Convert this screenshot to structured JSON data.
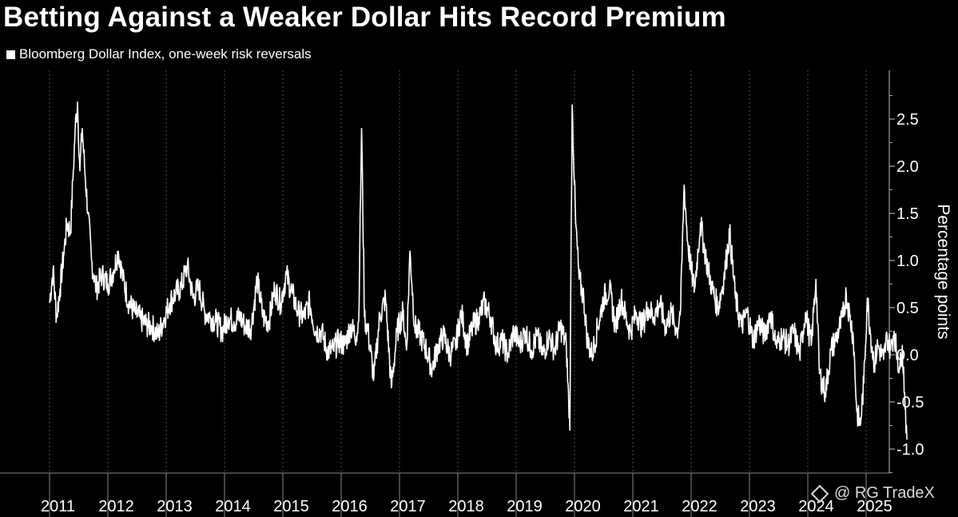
{
  "chart_data": {
    "type": "line",
    "title": "Betting Against a Weaker Dollar Hits Record Premium",
    "legend": [
      "Bloomberg Dollar Index, one-week risk reversals"
    ],
    "ylabel": "Percentage points",
    "xlabel": "",
    "ylim": [
      -1.25,
      3.0
    ],
    "yticks": [
      -1.0,
      -0.5,
      0.0,
      0.5,
      1.0,
      1.5,
      2.0,
      2.5
    ],
    "ytick_labels": [
      "-1.0",
      "-0.5",
      "0.0",
      "0.5",
      "1.0",
      "1.5",
      "2.0",
      "2.5"
    ],
    "xlim": [
      2011.0,
      2025.9
    ],
    "xticks": [
      2011,
      2012,
      2013,
      2014,
      2015,
      2016,
      2017,
      2018,
      2019,
      2020,
      2021,
      2022,
      2023,
      2024,
      2025
    ],
    "xtick_labels": [
      "2011",
      "2012",
      "2013",
      "2014",
      "2015",
      "2016",
      "2017",
      "2018",
      "2019",
      "2020",
      "2021",
      "2022",
      "2023",
      "2024",
      "2025"
    ],
    "grid": "vertical",
    "series": [
      {
        "name": "Bloomberg Dollar Index, one-week risk reversals",
        "color": "#ffffff",
        "points": [
          [
            2011.0,
            0.55
          ],
          [
            2011.06,
            0.9
          ],
          [
            2011.12,
            0.4
          ],
          [
            2011.18,
            0.7
          ],
          [
            2011.24,
            1.05
          ],
          [
            2011.3,
            1.4
          ],
          [
            2011.36,
            1.3
          ],
          [
            2011.4,
            1.85
          ],
          [
            2011.44,
            2.4
          ],
          [
            2011.48,
            2.68
          ],
          [
            2011.52,
            1.95
          ],
          [
            2011.56,
            2.4
          ],
          [
            2011.6,
            2.0
          ],
          [
            2011.66,
            1.5
          ],
          [
            2011.72,
            1.0
          ],
          [
            2011.8,
            0.7
          ],
          [
            2011.9,
            0.85
          ],
          [
            2012.0,
            0.75
          ],
          [
            2012.1,
            0.9
          ],
          [
            2012.18,
            1.1
          ],
          [
            2012.26,
            0.8
          ],
          [
            2012.36,
            0.55
          ],
          [
            2012.46,
            0.45
          ],
          [
            2012.56,
            0.38
          ],
          [
            2012.66,
            0.32
          ],
          [
            2012.76,
            0.3
          ],
          [
            2012.86,
            0.2
          ],
          [
            2012.96,
            0.38
          ],
          [
            2013.06,
            0.55
          ],
          [
            2013.16,
            0.65
          ],
          [
            2013.26,
            0.72
          ],
          [
            2013.36,
            0.95
          ],
          [
            2013.46,
            0.6
          ],
          [
            2013.56,
            0.72
          ],
          [
            2013.66,
            0.45
          ],
          [
            2013.76,
            0.4
          ],
          [
            2013.86,
            0.35
          ],
          [
            2013.96,
            0.25
          ],
          [
            2014.06,
            0.4
          ],
          [
            2014.16,
            0.35
          ],
          [
            2014.26,
            0.4
          ],
          [
            2014.36,
            0.3
          ],
          [
            2014.46,
            0.3
          ],
          [
            2014.56,
            0.8
          ],
          [
            2014.66,
            0.4
          ],
          [
            2014.76,
            0.35
          ],
          [
            2014.86,
            0.7
          ],
          [
            2014.96,
            0.55
          ],
          [
            2015.06,
            0.85
          ],
          [
            2015.16,
            0.65
          ],
          [
            2015.26,
            0.45
          ],
          [
            2015.36,
            0.4
          ],
          [
            2015.46,
            0.55
          ],
          [
            2015.56,
            0.25
          ],
          [
            2015.66,
            0.25
          ],
          [
            2015.76,
            0.05
          ],
          [
            2015.86,
            0.05
          ],
          [
            2015.96,
            0.15
          ],
          [
            2016.06,
            0.1
          ],
          [
            2016.16,
            0.3
          ],
          [
            2016.26,
            0.2
          ],
          [
            2016.3,
            0.35
          ],
          [
            2016.35,
            2.4
          ],
          [
            2016.4,
            0.4
          ],
          [
            2016.46,
            0.25
          ],
          [
            2016.56,
            -0.25
          ],
          [
            2016.66,
            0.4
          ],
          [
            2016.76,
            0.6
          ],
          [
            2016.86,
            -0.35
          ],
          [
            2016.96,
            0.25
          ],
          [
            2017.06,
            0.45
          ],
          [
            2017.12,
            0.05
          ],
          [
            2017.18,
            1.1
          ],
          [
            2017.26,
            0.3
          ],
          [
            2017.36,
            0.2
          ],
          [
            2017.46,
            0.05
          ],
          [
            2017.56,
            -0.15
          ],
          [
            2017.66,
            0.1
          ],
          [
            2017.76,
            0.2
          ],
          [
            2017.86,
            0.0
          ],
          [
            2017.96,
            0.1
          ],
          [
            2018.06,
            0.45
          ],
          [
            2018.16,
            0.1
          ],
          [
            2018.26,
            0.3
          ],
          [
            2018.36,
            0.4
          ],
          [
            2018.46,
            0.55
          ],
          [
            2018.56,
            0.4
          ],
          [
            2018.66,
            0.1
          ],
          [
            2018.76,
            0.15
          ],
          [
            2018.86,
            0.0
          ],
          [
            2018.96,
            0.25
          ],
          [
            2019.06,
            0.1
          ],
          [
            2019.16,
            0.25
          ],
          [
            2019.26,
            0.05
          ],
          [
            2019.36,
            0.2
          ],
          [
            2019.46,
            0.0
          ],
          [
            2019.56,
            0.2
          ],
          [
            2019.66,
            0.05
          ],
          [
            2019.76,
            0.3
          ],
          [
            2019.86,
            0.1
          ],
          [
            2019.92,
            -0.8
          ],
          [
            2019.96,
            2.65
          ],
          [
            2020.02,
            1.4
          ],
          [
            2020.08,
            0.8
          ],
          [
            2020.16,
            0.6
          ],
          [
            2020.22,
            0.15
          ],
          [
            2020.3,
            0.0
          ],
          [
            2020.4,
            0.3
          ],
          [
            2020.5,
            0.6
          ],
          [
            2020.6,
            0.7
          ],
          [
            2020.7,
            0.3
          ],
          [
            2020.8,
            0.6
          ],
          [
            2020.9,
            0.35
          ],
          [
            2020.96,
            0.25
          ],
          [
            2021.06,
            0.45
          ],
          [
            2021.16,
            0.3
          ],
          [
            2021.26,
            0.5
          ],
          [
            2021.36,
            0.4
          ],
          [
            2021.46,
            0.55
          ],
          [
            2021.56,
            0.3
          ],
          [
            2021.66,
            0.45
          ],
          [
            2021.76,
            0.25
          ],
          [
            2021.82,
            0.5
          ],
          [
            2021.88,
            1.8
          ],
          [
            2021.94,
            1.2
          ],
          [
            2022.0,
            0.9
          ],
          [
            2022.06,
            0.7
          ],
          [
            2022.16,
            1.4
          ],
          [
            2022.26,
            1.0
          ],
          [
            2022.36,
            0.7
          ],
          [
            2022.46,
            0.5
          ],
          [
            2022.56,
            0.8
          ],
          [
            2022.66,
            1.3
          ],
          [
            2022.76,
            0.6
          ],
          [
            2022.86,
            0.3
          ],
          [
            2022.96,
            0.45
          ],
          [
            2023.06,
            0.15
          ],
          [
            2023.16,
            0.35
          ],
          [
            2023.26,
            0.2
          ],
          [
            2023.36,
            0.45
          ],
          [
            2023.46,
            0.1
          ],
          [
            2023.56,
            0.2
          ],
          [
            2023.66,
            0.1
          ],
          [
            2023.76,
            0.25
          ],
          [
            2023.86,
            0.0
          ],
          [
            2023.96,
            0.45
          ],
          [
            2024.06,
            0.1
          ],
          [
            2024.14,
            0.8
          ],
          [
            2024.2,
            -0.2
          ],
          [
            2024.3,
            -0.4
          ],
          [
            2024.4,
            0.05
          ],
          [
            2024.5,
            0.2
          ],
          [
            2024.6,
            0.4
          ],
          [
            2024.66,
            0.65
          ],
          [
            2024.72,
            0.4
          ],
          [
            2024.78,
            0.2
          ],
          [
            2024.84,
            -0.6
          ],
          [
            2024.9,
            -0.75
          ],
          [
            2024.96,
            -0.3
          ],
          [
            2025.02,
            0.6
          ],
          [
            2025.08,
            0.2
          ],
          [
            2025.14,
            -0.1
          ],
          [
            2025.2,
            0.1
          ],
          [
            2025.3,
            -0.05
          ],
          [
            2025.36,
            0.2
          ],
          [
            2025.42,
            0.05
          ],
          [
            2025.48,
            0.25
          ],
          [
            2025.54,
            -0.05
          ],
          [
            2025.58,
            -0.15
          ],
          [
            2025.62,
            0.1
          ],
          [
            2025.66,
            -0.4
          ],
          [
            2025.7,
            -0.9
          ]
        ]
      }
    ]
  },
  "watermark": "@ RG TradeX"
}
